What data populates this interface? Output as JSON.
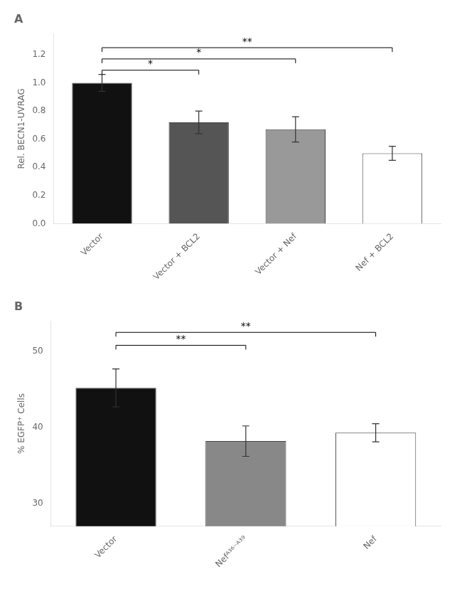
{
  "chart_data": [
    {
      "type": "bar",
      "title": "A",
      "categories": [
        "Vector",
        "Vector + BCL2",
        "Vector + Nef",
        "Nef + BCL2"
      ],
      "values": [
        1.0,
        0.72,
        0.67,
        0.5
      ],
      "errors": [
        0.06,
        0.08,
        0.09,
        0.05
      ],
      "colors": [
        "#111111",
        "#555555",
        "#999999",
        "#ffffff"
      ],
      "ylabel": "Rel. BECN1-UVRAG",
      "ylim": [
        0.0,
        1.35
      ],
      "yticks": [
        {
          "value": 0.0,
          "label": "0.0"
        },
        0.2,
        0.4,
        0.6,
        0.8,
        {
          "value": 1.0,
          "label": "1.0"
        },
        1.2
      ],
      "grid": false,
      "annotations": [
        {
          "from": "Vector",
          "to": "Vector + BCL2",
          "y": 1.09,
          "text": "*"
        },
        {
          "from": "Vector",
          "to": "Vector + Nef",
          "y": 1.17,
          "text": "*"
        },
        {
          "from": "Vector",
          "to": "Nef + BCL2",
          "y": 1.25,
          "text": "**"
        }
      ]
    },
    {
      "type": "bar",
      "title": "B",
      "categories": [
        "Vector",
        "Nefᴬ³⁶⁻ᴬ³⁹",
        "Nef"
      ],
      "values": [
        45.2,
        38.2,
        39.3
      ],
      "errors": [
        2.5,
        2.0,
        1.2
      ],
      "colors": [
        "#111111",
        "#888888",
        "#ffffff"
      ],
      "ylabel": "% EGFP⁺ Cells",
      "ylim": [
        27,
        54
      ],
      "yticks": [
        30,
        40,
        50
      ],
      "grid": false,
      "annotations": [
        {
          "from": "Vector",
          "to": "Nefᴬ³⁶⁻ᴬ³⁹",
          "y": 50.8,
          "text": "**"
        },
        {
          "from": "Vector",
          "to": "Nef",
          "y": 52.5,
          "text": "**"
        }
      ]
    }
  ]
}
